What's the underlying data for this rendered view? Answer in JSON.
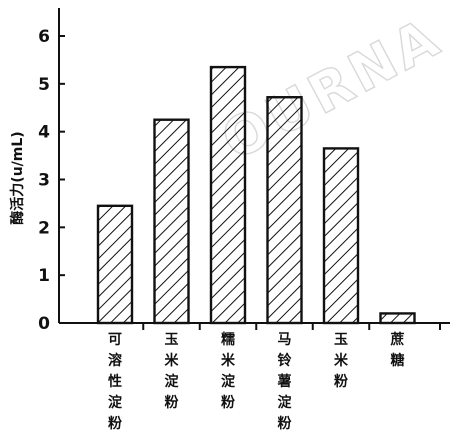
{
  "watermark": "OURNA",
  "chart_data": {
    "type": "bar",
    "categories": [
      "可溶性淀粉",
      "玉米淀粉",
      "糯米淀粉",
      "马铃薯淀粉",
      "玉米粉",
      "蔗糖"
    ],
    "values": [
      2.45,
      4.25,
      5.35,
      4.72,
      3.65,
      0.2
    ],
    "title": "",
    "xlabel": "",
    "ylabel": "酶活力(u/mL)",
    "ylim": [
      0,
      6
    ],
    "yticks": [
      0,
      1,
      2,
      3,
      4,
      5,
      6
    ],
    "grid": false,
    "bar_fill": "hatched",
    "colors": {
      "stroke": "#111111",
      "background": "#ffffff",
      "watermark": "#d9d9d9"
    }
  }
}
